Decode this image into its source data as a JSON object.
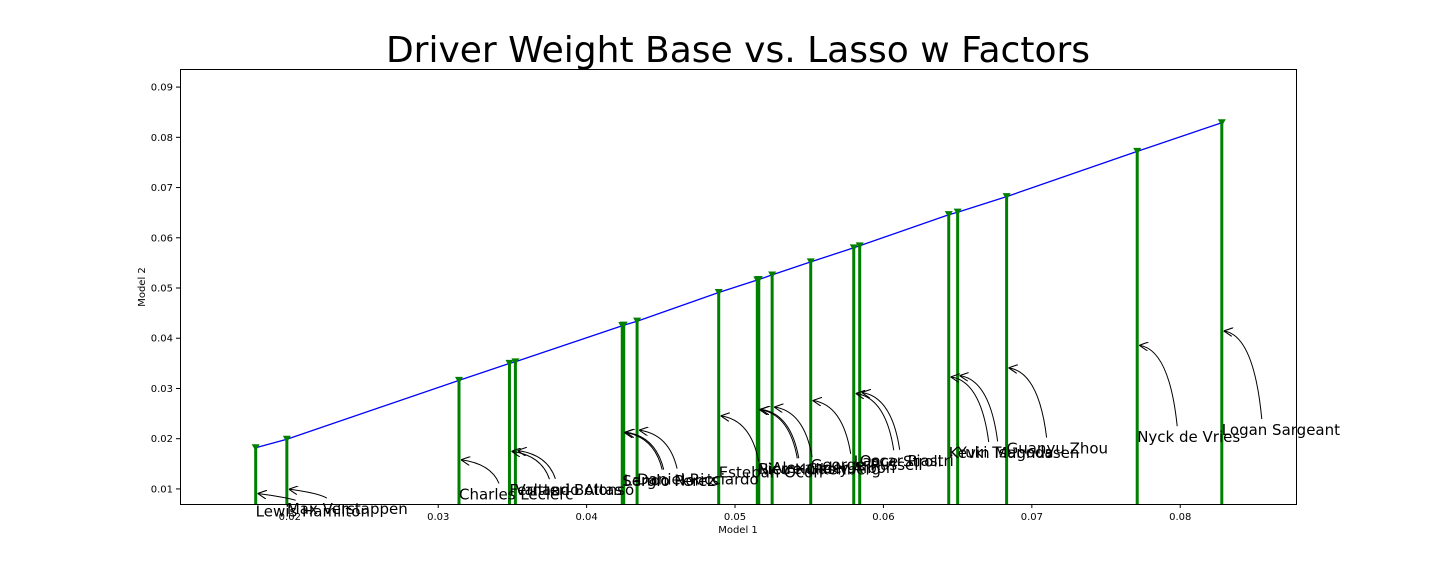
{
  "chart_data": {
    "type": "line",
    "title": "Driver Weight Base vs. Lasso w Factors",
    "xlabel": "Model 1",
    "ylabel": "Model 2",
    "xlim": [
      0.0126,
      0.0878
    ],
    "ylim": [
      0.007,
      0.0936
    ],
    "xticks": [
      0.02,
      0.03,
      0.04,
      0.05,
      0.06,
      0.07,
      0.08
    ],
    "yticks": [
      0.01,
      0.02,
      0.03,
      0.04,
      0.05,
      0.06,
      0.07,
      0.08,
      0.09
    ],
    "xtick_labels": [
      "0.02",
      "0.03",
      "0.04",
      "0.05",
      "0.06",
      "0.07",
      "0.08"
    ],
    "ytick_labels": [
      "0.01",
      "0.02",
      "0.03",
      "0.04",
      "0.05",
      "0.06",
      "0.07",
      "0.08",
      "0.09"
    ],
    "grid": false,
    "colors": {
      "line": "#0000ff",
      "stems": "#008000",
      "markers": "#008000"
    },
    "points": [
      {
        "name": "Lewis Hamilton",
        "x": 0.0177,
        "y": 0.0182
      },
      {
        "name": "Max Verstappen",
        "x": 0.0198,
        "y": 0.0199
      },
      {
        "name": "Charles Leclerc",
        "x": 0.0314,
        "y": 0.0316
      },
      {
        "name": "Fernando Alonso",
        "x": 0.0348,
        "y": 0.035
      },
      {
        "name": "Valtteri Bottas",
        "x": 0.0352,
        "y": 0.0353
      },
      {
        "name": "Sergio Perez",
        "x": 0.0424,
        "y": 0.0425
      },
      {
        "name": "Lando Norris",
        "x": 0.0425,
        "y": 0.0426
      },
      {
        "name": "Daniel Ricciardo",
        "x": 0.0434,
        "y": 0.0434
      },
      {
        "name": "Esteban Ocon",
        "x": 0.0489,
        "y": 0.0491
      },
      {
        "name": "Nico Hulkenberg",
        "x": 0.0515,
        "y": 0.0516
      },
      {
        "name": "Pierre Gasly",
        "x": 0.0516,
        "y": 0.0517
      },
      {
        "name": "Alexander Albon",
        "x": 0.0525,
        "y": 0.0526
      },
      {
        "name": "George Russell",
        "x": 0.0551,
        "y": 0.0552
      },
      {
        "name": "Lance Stroll",
        "x": 0.058,
        "y": 0.058
      },
      {
        "name": "Oscar Piastri",
        "x": 0.0584,
        "y": 0.0584
      },
      {
        "name": "Kevin Magnussen",
        "x": 0.0644,
        "y": 0.0646
      },
      {
        "name": "Yuki Tsunoda",
        "x": 0.065,
        "y": 0.0651
      },
      {
        "name": "Guanyu Zhou",
        "x": 0.0683,
        "y": 0.0682
      },
      {
        "name": "Nyck de Vries",
        "x": 0.0771,
        "y": 0.0772
      },
      {
        "name": "Logan Sargeant",
        "x": 0.0828,
        "y": 0.0829
      }
    ]
  }
}
